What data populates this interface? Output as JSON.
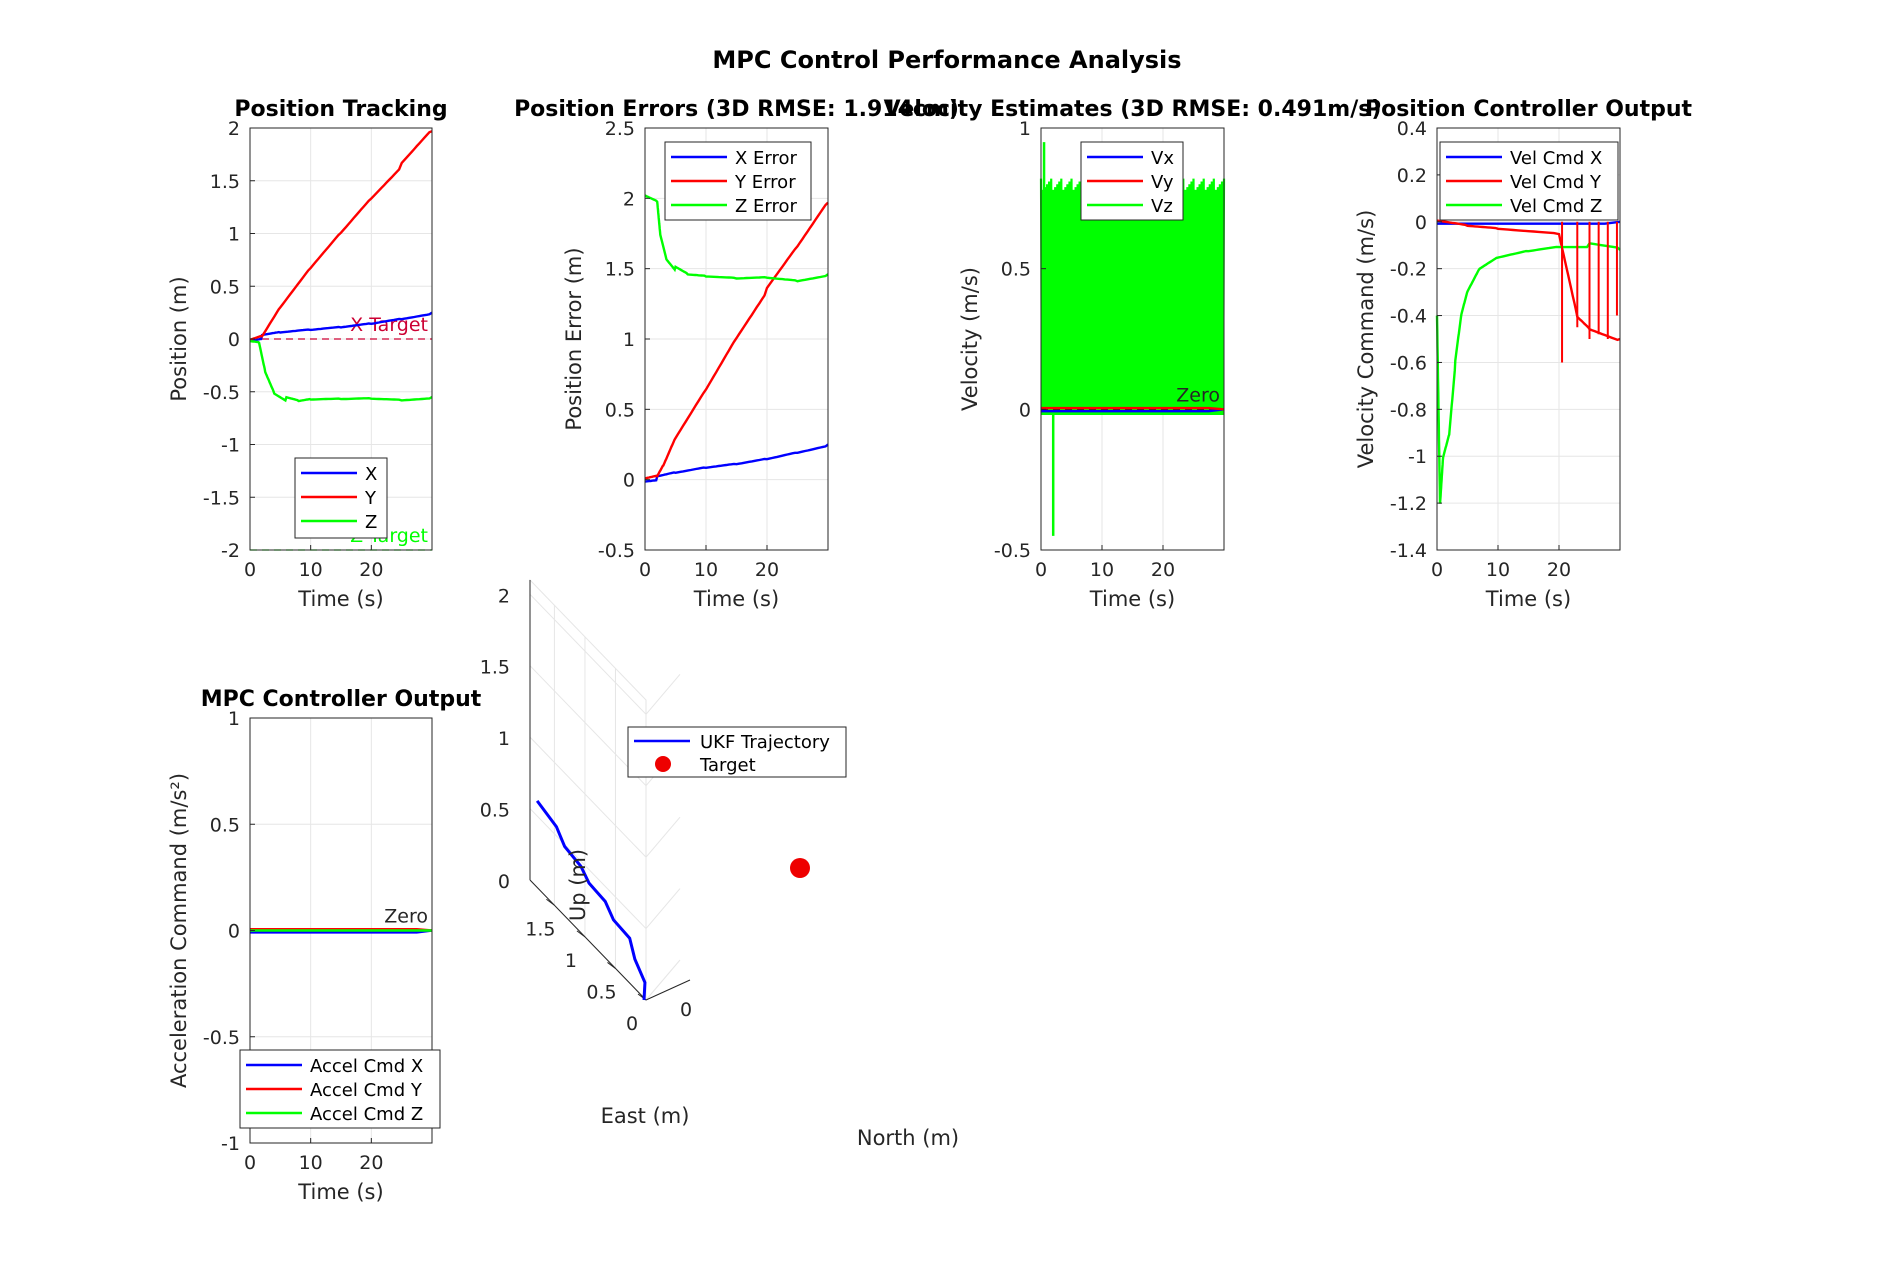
{
  "figure": {
    "title": "MPC Control Performance Analysis"
  },
  "colors": {
    "x": "#0000ff",
    "y": "#ff0000",
    "z": "#00ff00",
    "target_x": "#cc0033",
    "grid": "#e6e6e6",
    "axis": "#262626",
    "marker": "#ee0000"
  },
  "chart_data": [
    {
      "type": "line",
      "title": "Position Tracking",
      "xlabel": "Time (s)",
      "ylabel": "Position (m)",
      "xlim": [
        0,
        30
      ],
      "ylim": [
        -2,
        2
      ],
      "xticks": [
        0,
        10,
        20
      ],
      "yticks": [
        -2,
        -1.5,
        -1,
        -0.5,
        0,
        0.5,
        1,
        1.5,
        2
      ],
      "grid": true,
      "legend_position": "bottom",
      "series": [
        {
          "name": "X",
          "color": "x",
          "x": [
            0,
            2,
            5,
            10,
            15,
            20,
            25,
            30
          ],
          "y": [
            0,
            0.02,
            0.05,
            0.08,
            0.11,
            0.15,
            0.2,
            0.25
          ]
        },
        {
          "name": "Y",
          "color": "y",
          "x": [
            0,
            2,
            5,
            10,
            15,
            20,
            25,
            30
          ],
          "y": [
            -0.02,
            0.02,
            0.3,
            0.68,
            1.02,
            1.35,
            1.65,
            1.97
          ]
        },
        {
          "name": "Z",
          "color": "z",
          "x": [
            0,
            1.5,
            2.5,
            4,
            6,
            8,
            10,
            15,
            20,
            25,
            30
          ],
          "y": [
            -0.02,
            -0.03,
            -0.3,
            -0.5,
            -0.57,
            -0.6,
            -0.58,
            -0.57,
            -0.56,
            -0.57,
            -0.55
          ]
        }
      ],
      "reference_lines": [
        {
          "label": "X Target",
          "y": 0,
          "color": "target_x"
        },
        {
          "label": "Z Target",
          "y": -2,
          "color": "z"
        }
      ]
    },
    {
      "type": "line",
      "title": "Position Errors (3D RMSE: 1.914cm)",
      "xlabel": "Time (s)",
      "ylabel": "Position Error (m)",
      "xlim": [
        0,
        30
      ],
      "ylim": [
        -0.5,
        2.5
      ],
      "xticks": [
        0,
        10,
        20
      ],
      "yticks": [
        -0.5,
        0,
        0.5,
        1,
        1.5,
        2,
        2.5
      ],
      "grid": true,
      "legend_position": "top",
      "series": [
        {
          "name": "X Error",
          "color": "x",
          "x": [
            0,
            2,
            5,
            10,
            15,
            20,
            25,
            30
          ],
          "y": [
            0,
            0.01,
            0.04,
            0.08,
            0.11,
            0.15,
            0.2,
            0.25
          ]
        },
        {
          "name": "Y Error",
          "color": "y",
          "x": [
            0,
            2,
            3,
            5,
            10,
            15,
            20,
            25,
            30
          ],
          "y": [
            0,
            0.02,
            0.1,
            0.3,
            0.65,
            1.02,
            1.35,
            1.65,
            1.97
          ]
        },
        {
          "name": "Z Error",
          "color": "z",
          "x": [
            0,
            2,
            2.5,
            3.5,
            5,
            7,
            10,
            15,
            20,
            25,
            30
          ],
          "y": [
            2.02,
            1.98,
            1.75,
            1.58,
            1.5,
            1.45,
            1.44,
            1.43,
            1.44,
            1.42,
            1.46
          ]
        }
      ]
    },
    {
      "type": "line",
      "title": "Velocity Estimates (3D RMSE: 0.491m/s)",
      "xlabel": "Time (s)",
      "ylabel": "Velocity (m/s)",
      "xlim": [
        0,
        30
      ],
      "ylim": [
        -0.5,
        1
      ],
      "xticks": [
        0,
        10,
        20
      ],
      "yticks": [
        -0.5,
        0,
        0.5,
        1
      ],
      "grid": true,
      "legend_position": "top",
      "series": [
        {
          "name": "Vx",
          "color": "x",
          "x": [
            0,
            30
          ],
          "y": [
            0,
            0
          ]
        },
        {
          "name": "Vy",
          "color": "y",
          "x": [
            0,
            30
          ],
          "y": [
            0,
            0
          ]
        },
        {
          "name": "Vz",
          "color": "z",
          "x": [
            0,
            30
          ],
          "y": [
            0,
            0.8
          ]
        }
      ],
      "band": {
        "color": "z",
        "y_low": -0.02,
        "y_high": 0.82
      },
      "reference_lines": [
        {
          "label": "Zero",
          "y": 0,
          "color": "axis"
        }
      ]
    },
    {
      "type": "line",
      "title": "Position Controller Output",
      "xlabel": "Time (s)",
      "ylabel": "Velocity Command (m/s)",
      "xlim": [
        0,
        30
      ],
      "ylim": [
        -1.4,
        0.4
      ],
      "xticks": [
        0,
        10,
        20
      ],
      "yticks": [
        -1.4,
        -1.2,
        -1,
        -0.8,
        -0.6,
        -0.4,
        -0.2,
        0,
        0.2,
        0.4
      ],
      "grid": true,
      "legend_position": "top",
      "series": [
        {
          "name": "Vel Cmd X",
          "color": "x",
          "x": [
            0,
            30
          ],
          "y": [
            0,
            0
          ]
        },
        {
          "name": "Vel Cmd Y",
          "color": "y",
          "x": [
            0,
            5,
            10,
            20,
            23,
            25,
            30
          ],
          "y": [
            0,
            -0.02,
            -0.03,
            -0.05,
            -0.4,
            -0.45,
            -0.5
          ]
        },
        {
          "name": "Vel Cmd Z",
          "color": "z",
          "x": [
            0,
            0.5,
            1,
            2,
            3,
            4,
            5,
            7,
            10,
            15,
            20,
            25,
            30
          ],
          "y": [
            -0.4,
            -1.2,
            -1.0,
            -0.9,
            -0.6,
            -0.4,
            -0.3,
            -0.2,
            -0.15,
            -0.12,
            -0.1,
            -0.1,
            -0.12
          ]
        }
      ]
    },
    {
      "type": "line",
      "title": "MPC Controller Output",
      "xlabel": "Time (s)",
      "ylabel": "Acceleration Command (m/s²)",
      "xlim": [
        0,
        30
      ],
      "ylim": [
        -1,
        1
      ],
      "xticks": [
        0,
        10,
        20
      ],
      "yticks": [
        -1,
        -0.5,
        0,
        0.5,
        1
      ],
      "grid": true,
      "legend_position": "bottom",
      "series": [
        {
          "name": "Accel Cmd X",
          "color": "x",
          "x": [
            0,
            30
          ],
          "y": [
            0,
            0
          ]
        },
        {
          "name": "Accel Cmd Y",
          "color": "y",
          "x": [
            0,
            30
          ],
          "y": [
            0,
            0
          ]
        },
        {
          "name": "Accel Cmd Z",
          "color": "z",
          "x": [
            0,
            30
          ],
          "y": [
            0,
            0
          ]
        }
      ],
      "reference_lines": [
        {
          "label": "Zero",
          "y": 0,
          "color": "axis"
        }
      ]
    },
    {
      "type": "scatter",
      "title": "",
      "xlabel": "East (m)",
      "ylabel": "Up (m)",
      "zlabel": "North (m)",
      "up_ticks": [
        "0",
        "0.5",
        "1",
        "1.5",
        "2"
      ],
      "east_ticks": [
        "0",
        "0.5",
        "1",
        "1.5"
      ],
      "north_ticks": [
        "0"
      ],
      "legend_position": "top",
      "series": [
        {
          "name": "UKF Trajectory",
          "color": "x",
          "east": [
            0,
            0.05,
            0.15,
            0.3,
            0.5,
            0.7,
            0.9,
            1.1,
            1.3,
            1.5,
            1.75
          ],
          "up": [
            0,
            0.1,
            0.22,
            0.3,
            0.34,
            0.38,
            0.42,
            0.45,
            0.5,
            0.55,
            0.62
          ]
        },
        {
          "name": "Target",
          "color": "marker",
          "east": [
            0
          ],
          "up": [
            2
          ],
          "marker": "circle"
        }
      ]
    }
  ]
}
